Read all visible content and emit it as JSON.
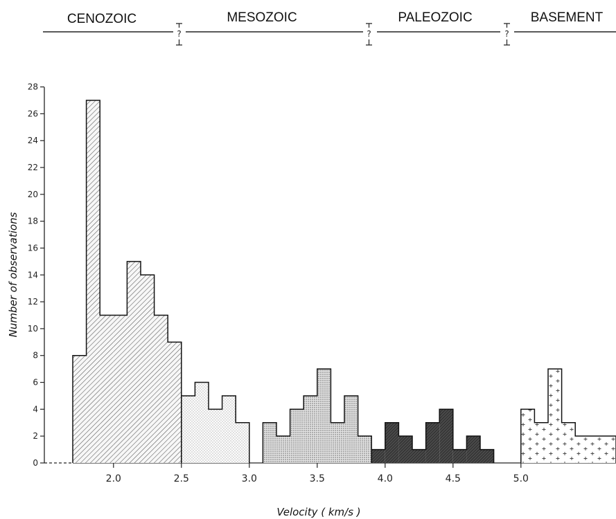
{
  "eras": [
    {
      "label": "CENOZOIC"
    },
    {
      "label": "MESOZOIC"
    },
    {
      "label": "PALEOZOIC"
    },
    {
      "label": "BASEMENT"
    }
  ],
  "boundary_marker": "?",
  "chart_data": {
    "type": "bar",
    "title": "",
    "xlabel": "Velocity ( km/s )",
    "ylabel": "Number of observations",
    "xlim": [
      1.5,
      5.7
    ],
    "ylim": [
      0,
      28
    ],
    "bin_width": 0.1,
    "x_ticks": [
      "2.0",
      "2.5",
      "3.0",
      "3.5",
      "4.0",
      "4.5",
      "5.0"
    ],
    "y_ticks": [
      "0",
      "2",
      "4",
      "6",
      "8",
      "10",
      "12",
      "14",
      "16",
      "18",
      "20",
      "22",
      "24",
      "26",
      "28"
    ],
    "grid": false,
    "series": [
      {
        "name": "CENOZOIC",
        "pattern": "diagonal-hatch",
        "bins": [
          [
            1.7,
            8
          ],
          [
            1.8,
            27
          ],
          [
            1.9,
            11
          ],
          [
            2.0,
            11
          ],
          [
            2.1,
            15
          ],
          [
            2.2,
            14
          ],
          [
            2.3,
            11
          ],
          [
            2.4,
            9
          ]
        ]
      },
      {
        "name": "MESOZOIC",
        "pattern": "fine-dots",
        "bins": [
          [
            2.5,
            5
          ],
          [
            2.6,
            6
          ],
          [
            2.7,
            4
          ],
          [
            2.8,
            5
          ],
          [
            2.9,
            3
          ]
        ]
      },
      {
        "name": "MESOZOIC",
        "pattern": "dense-dots",
        "bins": [
          [
            3.1,
            3
          ],
          [
            3.2,
            2
          ],
          [
            3.3,
            4
          ],
          [
            3.4,
            5
          ],
          [
            3.5,
            7
          ],
          [
            3.6,
            3
          ],
          [
            3.7,
            5
          ],
          [
            3.8,
            2
          ]
        ]
      },
      {
        "name": "PALEOZOIC",
        "pattern": "dark-hatch",
        "bins": [
          [
            3.9,
            1
          ],
          [
            4.0,
            3
          ],
          [
            4.1,
            2
          ],
          [
            4.2,
            1
          ],
          [
            4.3,
            3
          ],
          [
            4.4,
            4
          ],
          [
            4.5,
            1
          ],
          [
            4.6,
            2
          ],
          [
            4.7,
            1
          ]
        ]
      },
      {
        "name": "BASEMENT",
        "pattern": "crosses",
        "bins": [
          [
            5.0,
            4
          ],
          [
            5.1,
            3
          ],
          [
            5.2,
            7
          ],
          [
            5.3,
            3
          ],
          [
            5.4,
            2
          ],
          [
            5.5,
            2
          ],
          [
            5.6,
            2
          ]
        ]
      }
    ]
  }
}
